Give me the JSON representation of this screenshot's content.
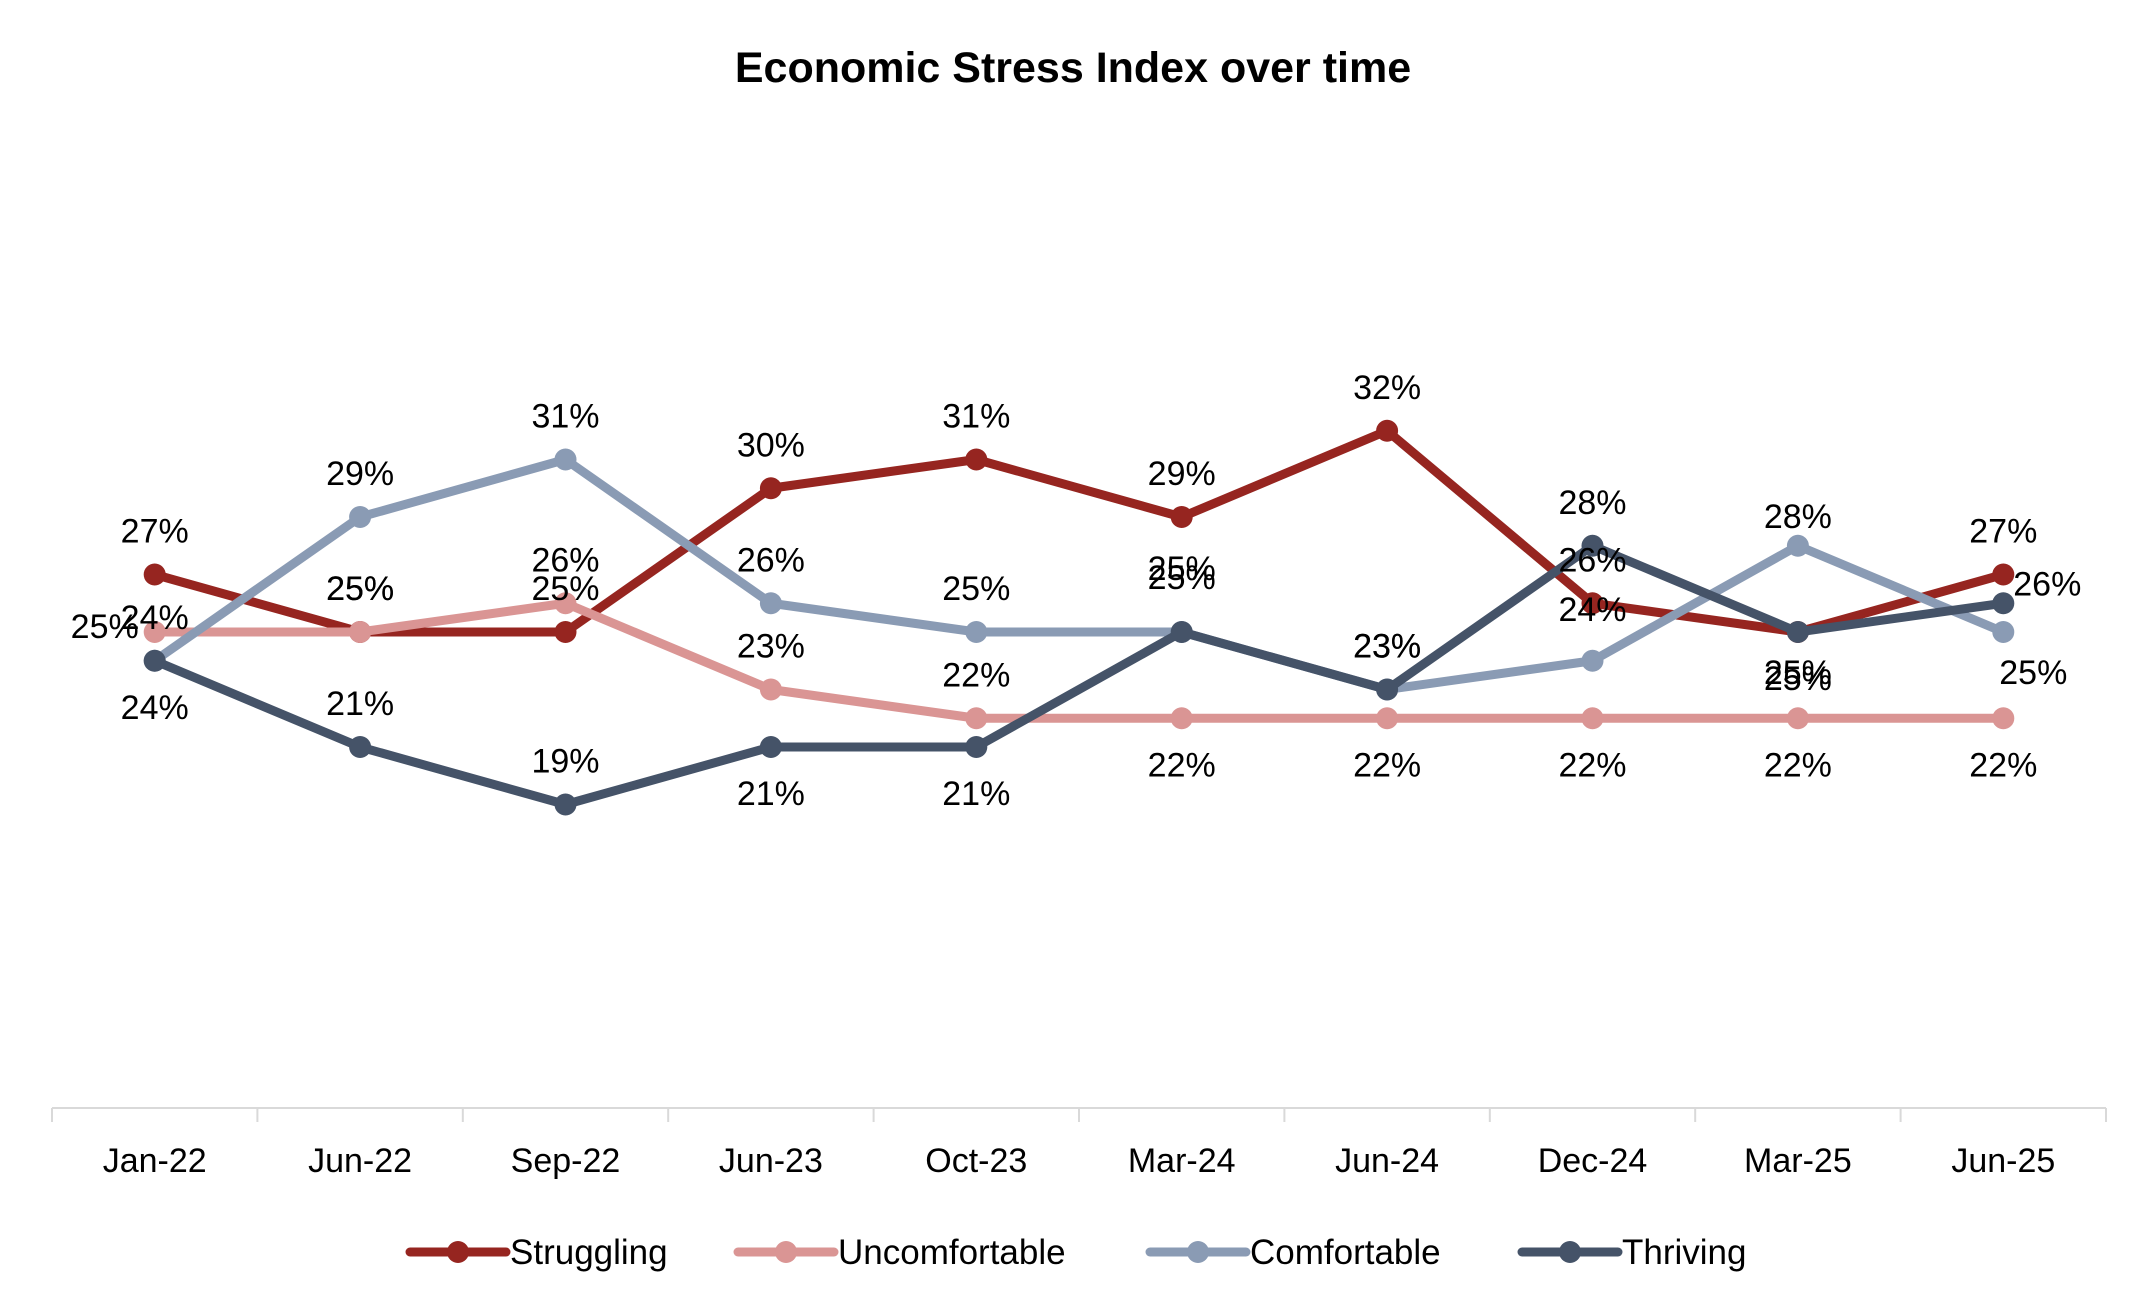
{
  "chart_data": {
    "type": "line",
    "title": "Economic Stress Index over time",
    "categories": [
      "Jan-22",
      "Jun-22",
      "Sep-22",
      "Jun-23",
      "Oct-23",
      "Mar-24",
      "Jun-24",
      "Dec-24",
      "Mar-25",
      "Jun-25"
    ],
    "ylim": [
      10,
      40
    ],
    "grid": false,
    "legend_position": "bottom",
    "value_suffix": "%",
    "series": [
      {
        "name": "Struggling",
        "color": "#962520",
        "values": [
          27,
          25,
          25,
          30,
          31,
          29,
          32,
          26,
          25,
          27
        ]
      },
      {
        "name": "Uncomfortable",
        "color": "#DA9594",
        "values": [
          25,
          25,
          26,
          23,
          22,
          22,
          22,
          22,
          22,
          22
        ]
      },
      {
        "name": "Comfortable",
        "color": "#8A9BB4",
        "values": [
          24,
          29,
          31,
          26,
          25,
          25,
          23,
          24,
          28,
          25
        ]
      },
      {
        "name": "Thriving",
        "color": "#455368",
        "values": [
          24,
          21,
          19,
          21,
          21,
          25,
          23,
          28,
          25,
          26
        ]
      }
    ]
  }
}
